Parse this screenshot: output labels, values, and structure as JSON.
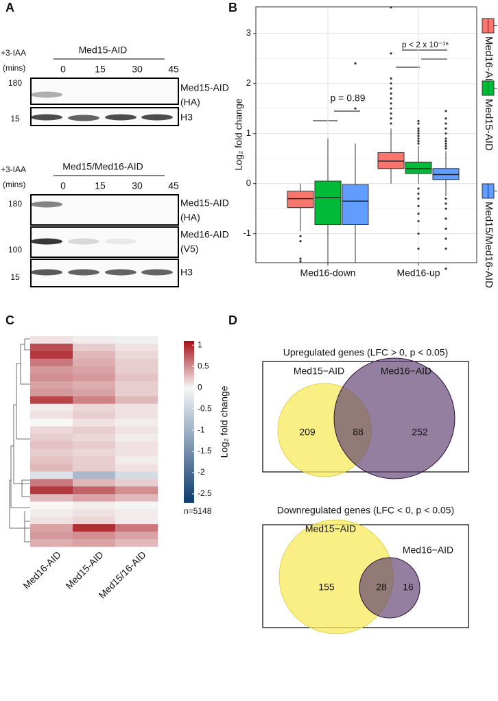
{
  "panel_labels": [
    "A",
    "B",
    "C",
    "D"
  ],
  "panel_a": {
    "blots": [
      {
        "treatment": "+3-IAA",
        "unit": "(mins)",
        "strain": "Med15-AID",
        "times": [
          0,
          15,
          30,
          45
        ],
        "markers": [
          180,
          15
        ],
        "lanes": [
          {
            "name": "Med15-AID",
            "tag": "(HA)"
          },
          {
            "name": "H3"
          }
        ]
      },
      {
        "treatment": "+3-IAA",
        "unit": "(mins)",
        "strain": "Med15/Med16-AID",
        "times": [
          0,
          15,
          30,
          45
        ],
        "markers": [
          180,
          100,
          15
        ],
        "lanes": [
          {
            "name": "Med15-AID",
            "tag": "(HA)"
          },
          {
            "name": "Med16-AID",
            "tag": "(V5)"
          },
          {
            "name": "H3"
          }
        ]
      }
    ]
  },
  "chart_data": [
    {
      "type": "box",
      "ylabel": "Log₂ fold change",
      "categories": [
        "Med16-down",
        "Med16-up"
      ],
      "ylim": [
        -1.58,
        3.53
      ],
      "yticks": [
        -1,
        0,
        1,
        2,
        3
      ],
      "grid": true,
      "legend": "right",
      "annotations": [
        "p = 0.89",
        "p < 2 x 10⁻¹⁶"
      ],
      "series": [
        {
          "name": "Med16-AID",
          "color": "#f8766d",
          "boxes": [
            {
              "whislo": -0.95,
              "q1": -0.48,
              "med": -0.3,
              "q3": -0.15,
              "whishi": 0.0,
              "fliers": [
                -1.05,
                -1.15,
                -1.5,
                -1.55
              ]
            },
            {
              "whislo": 0.0,
              "q1": 0.3,
              "med": 0.45,
              "q3": 0.62,
              "whishi": 1.1,
              "fliers": [
                1.2,
                1.3,
                1.4,
                1.5,
                1.6,
                1.7,
                1.8,
                1.9,
                2.0,
                2.1,
                2.6,
                3.52
              ]
            }
          ]
        },
        {
          "name": "Med15-AID",
          "color": "#00ba38",
          "boxes": [
            {
              "whislo": -1.58,
              "q1": -0.82,
              "med": -0.28,
              "q3": 0.05,
              "whishi": 0.9,
              "fliers": []
            },
            {
              "whislo": 0.0,
              "q1": 0.2,
              "med": 0.3,
              "q3": 0.43,
              "whishi": 0.75,
              "fliers": [
                0.8,
                0.85,
                0.9,
                0.95,
                1.0,
                1.05,
                1.1,
                1.2,
                1.25,
                -0.1,
                -0.2,
                -0.3,
                -0.45,
                -0.6,
                -0.75,
                -1.0,
                -1.3
              ]
            }
          ]
        },
        {
          "name": "Med15/Med16-AID",
          "color": "#619cff",
          "boxes": [
            {
              "whislo": -1.58,
              "q1": -0.82,
              "med": -0.35,
              "q3": -0.02,
              "whishi": 0.8,
              "fliers": [
                1.5,
                2.4
              ]
            },
            {
              "whislo": -0.25,
              "q1": 0.08,
              "med": 0.18,
              "q3": 0.3,
              "whishi": 0.65,
              "fliers": [
                0.7,
                0.75,
                0.8,
                0.85,
                0.9,
                1.0,
                1.1,
                1.2,
                1.3,
                1.45,
                -0.3,
                -0.4,
                -0.5,
                -0.7,
                -0.9,
                -1.1,
                -1.3,
                -1.7
              ]
            }
          ]
        }
      ]
    },
    {
      "type": "heatmap",
      "columns": [
        "Med16-AID",
        "Med15-AID",
        "Med15/16-AID"
      ],
      "rows": [
        [
          0.1,
          0.05,
          -0.1
        ],
        [
          0.8,
          0.2,
          0.1
        ],
        [
          0.9,
          0.3,
          0.15
        ],
        [
          0.6,
          0.35,
          0.2
        ],
        [
          0.45,
          0.4,
          0.2
        ],
        [
          0.5,
          0.45,
          0.25
        ],
        [
          0.4,
          0.35,
          0.2
        ],
        [
          0.45,
          0.4,
          0.2
        ],
        [
          0.85,
          0.55,
          0.3
        ],
        [
          0.05,
          0.15,
          0.1
        ],
        [
          0.1,
          0.2,
          0.1
        ],
        [
          0.0,
          0.1,
          0.05
        ],
        [
          0.15,
          0.2,
          0.1
        ],
        [
          0.2,
          0.15,
          0.05
        ],
        [
          0.25,
          0.2,
          0.1
        ],
        [
          0.2,
          0.15,
          0.1
        ],
        [
          0.25,
          0.2,
          0.05
        ],
        [
          0.3,
          0.2,
          0.1
        ],
        [
          -0.3,
          -0.9,
          -0.4
        ],
        [
          0.6,
          0.3,
          0.2
        ],
        [
          0.9,
          0.7,
          0.5
        ],
        [
          0.3,
          0.4,
          0.3
        ],
        [
          0.0,
          0.05,
          -0.05
        ],
        [
          0.05,
          0.1,
          0.05
        ],
        [
          0.1,
          0.15,
          0.05
        ],
        [
          0.4,
          0.95,
          0.6
        ],
        [
          0.45,
          0.5,
          0.4
        ],
        [
          0.35,
          0.4,
          0.3
        ]
      ],
      "colorbar": {
        "label": "Log₂ fold change",
        "lim": [
          -2.71,
          1.1
        ],
        "ticks": [
          1,
          0.5,
          0,
          -0.5,
          -1,
          -1.5,
          -2,
          -2.5
        ],
        "colors": {
          "low": "#0b3a6e",
          "mid": "#f7f7f7",
          "high": "#a50f15"
        }
      },
      "note": "n=5148"
    }
  ],
  "panel_d": {
    "venns": [
      {
        "title": "Upregulated genes (LFC > 0, p < 0.05)",
        "sets": [
          "Med15−AID",
          "Med16−AID"
        ],
        "counts": [
          209,
          88,
          252
        ]
      },
      {
        "title": "Downregulated genes (LFC < 0, p < 0.05)",
        "sets": [
          "Med15−AID",
          "Med16−AID"
        ],
        "counts": [
          155,
          28,
          16
        ]
      }
    ]
  }
}
